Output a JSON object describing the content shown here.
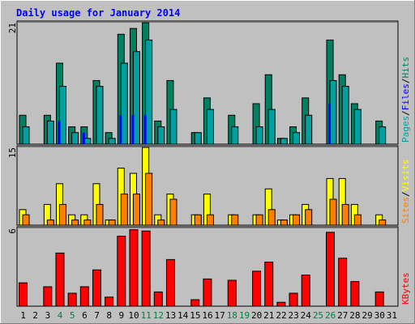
{
  "colors": {
    "background": "#c0c0c0",
    "plot_background": "#c0c0c0",
    "grid": "#ffffff",
    "title": "#0000ff",
    "pages": "#00a0a0",
    "hits": "#008060",
    "files": "#0000ff",
    "sites": "#ff8000",
    "visits": "#ffff00",
    "kbytes": "#ff0000",
    "weekend_label": "#008040",
    "weekday_label": "#000000",
    "bar_outline": "#000000"
  },
  "chart_data": {
    "type": "bar",
    "title": "Daily usage for January 2014",
    "categories": [
      "1",
      "2",
      "3",
      "4",
      "5",
      "6",
      "7",
      "8",
      "9",
      "10",
      "11",
      "12",
      "13",
      "14",
      "15",
      "16",
      "17",
      "18",
      "19",
      "20",
      "21",
      "22",
      "23",
      "24",
      "25",
      "26",
      "27",
      "28",
      "29",
      "30",
      "31"
    ],
    "weekend_days": [
      "4",
      "5",
      "11",
      "12",
      "18",
      "19",
      "25",
      "26"
    ],
    "panels": [
      {
        "id": "hits_files_pages",
        "ymax": "21",
        "ylim": [
          0,
          21
        ],
        "legend": [
          {
            "text": "Hits",
            "color_key": "hits"
          },
          {
            "text": "/",
            "color_key": "weekday_label"
          },
          {
            "text": "Files",
            "color_key": "files"
          },
          {
            "text": "/",
            "color_key": "weekday_label"
          },
          {
            "text": "Pages",
            "color_key": "pages"
          }
        ],
        "series": [
          {
            "name": "Hits",
            "color_key": "hits",
            "values": [
              5,
              0,
              5,
              14,
              3,
              3,
              11,
              2,
              19,
              20,
              21,
              4,
              11,
              0,
              2,
              8,
              0,
              5,
              0,
              7,
              12,
              1,
              3,
              8,
              0,
              18,
              12,
              7,
              0,
              4,
              0
            ]
          },
          {
            "name": "Files",
            "color_key": "files",
            "values": [
              0,
              0,
              0,
              4,
              0,
              2,
              0,
              0,
              5,
              5,
              5,
              0,
              0,
              0,
              0,
              0,
              0,
              0,
              0,
              0,
              0,
              0,
              0,
              0,
              0,
              7,
              0,
              0,
              0,
              0,
              0
            ]
          },
          {
            "name": "Pages",
            "color_key": "pages",
            "values": [
              3,
              0,
              4,
              10,
              2,
              1,
              10,
              1,
              14,
              16,
              18,
              3,
              6,
              0,
              2,
              6,
              0,
              3,
              0,
              3,
              6,
              1,
              2,
              5,
              0,
              11,
              10,
              6,
              0,
              3,
              0
            ]
          }
        ]
      },
      {
        "id": "visits_sites",
        "ymax": "15",
        "ylim": [
          0,
          15
        ],
        "legend": [
          {
            "text": "Visits",
            "color_key": "visits"
          },
          {
            "text": "/",
            "color_key": "weekday_label"
          },
          {
            "text": "Sites",
            "color_key": "sites"
          }
        ],
        "series": [
          {
            "name": "Visits",
            "color_key": "visits",
            "values": [
              3,
              0,
              4,
              8,
              2,
              2,
              8,
              1,
              11,
              10,
              15,
              2,
              6,
              0,
              2,
              6,
              0,
              2,
              0,
              2,
              7,
              1,
              2,
              4,
              0,
              9,
              9,
              4,
              0,
              2,
              0
            ]
          },
          {
            "name": "Sites",
            "color_key": "sites",
            "values": [
              2,
              0,
              1,
              4,
              1,
              1,
              4,
              1,
              6,
              6,
              10,
              1,
              5,
              0,
              2,
              2,
              0,
              2,
              0,
              2,
              3,
              1,
              2,
              3,
              0,
              5,
              4,
              2,
              0,
              1,
              0
            ]
          }
        ]
      },
      {
        "id": "kbytes",
        "ymax": "6",
        "ylim": [
          0,
          6
        ],
        "legend": [
          {
            "text": "KBytes",
            "color_key": "kbytes"
          }
        ],
        "series": [
          {
            "name": "KBytes",
            "color_key": "kbytes",
            "values": [
              1.8,
              0,
              1.5,
              4.1,
              1.0,
              1.5,
              2.8,
              0.7,
              5.4,
              5.9,
              5.8,
              1.1,
              3.6,
              0,
              0.5,
              2.1,
              0,
              2.0,
              0,
              2.7,
              3.4,
              0.3,
              1.0,
              2.4,
              0,
              5.7,
              3.7,
              1.9,
              0,
              1.1,
              0
            ]
          }
        ]
      }
    ]
  }
}
